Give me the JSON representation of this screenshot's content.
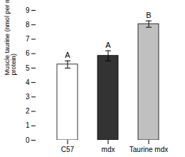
{
  "chart_data": {
    "type": "bar",
    "categories": [
      "C57",
      "mdx",
      "Taurine mdx"
    ],
    "values": [
      5.25,
      5.85,
      8.05
    ],
    "errors": [
      0.25,
      0.35,
      0.22
    ],
    "colors": [
      "#ffffff",
      "#333333",
      "#c0c0c0"
    ],
    "letters": [
      "A",
      "A",
      "B"
    ],
    "ylabel": "Muscle taurine (nmol per mg\nprotein)",
    "ylim": [
      0,
      9
    ],
    "yticks": [
      0,
      1,
      2,
      3,
      4,
      5,
      6,
      7,
      8,
      9
    ]
  }
}
